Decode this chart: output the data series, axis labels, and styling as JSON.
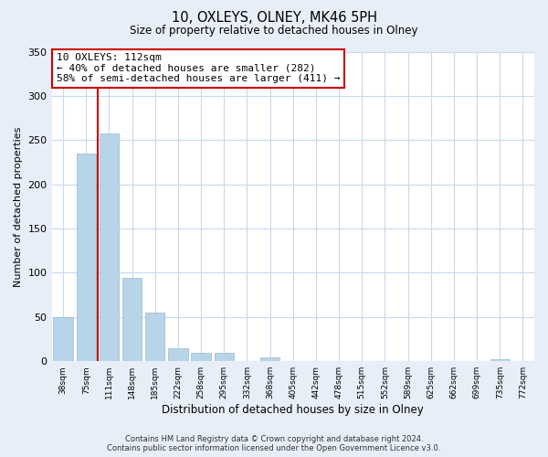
{
  "title": "10, OXLEYS, OLNEY, MK46 5PH",
  "subtitle": "Size of property relative to detached houses in Olney",
  "xlabel": "Distribution of detached houses by size in Olney",
  "ylabel": "Number of detached properties",
  "bar_labels": [
    "38sqm",
    "75sqm",
    "111sqm",
    "148sqm",
    "185sqm",
    "222sqm",
    "258sqm",
    "295sqm",
    "332sqm",
    "368sqm",
    "405sqm",
    "442sqm",
    "478sqm",
    "515sqm",
    "552sqm",
    "589sqm",
    "625sqm",
    "662sqm",
    "699sqm",
    "735sqm",
    "772sqm"
  ],
  "bar_values": [
    50,
    235,
    257,
    94,
    55,
    15,
    10,
    9,
    0,
    4,
    0,
    0,
    0,
    0,
    0,
    0,
    0,
    0,
    0,
    2,
    0
  ],
  "bar_color": "#b8d4e8",
  "highlight_color": "#cc0000",
  "highlight_bar_index": 2,
  "ylim": [
    0,
    350
  ],
  "yticks": [
    0,
    50,
    100,
    150,
    200,
    250,
    300,
    350
  ],
  "annotation_title": "10 OXLEYS: 112sqm",
  "annotation_line1": "← 40% of detached houses are smaller (282)",
  "annotation_line2": "58% of semi-detached houses are larger (411) →",
  "annotation_box_color": "#ffffff",
  "annotation_border_color": "#cc0000",
  "footer_line1": "Contains HM Land Registry data © Crown copyright and database right 2024.",
  "footer_line2": "Contains public sector information licensed under the Open Government Licence v3.0.",
  "bg_color": "#e8eef8",
  "plot_bg_color": "#ffffff",
  "grid_color": "#c8d8ec"
}
